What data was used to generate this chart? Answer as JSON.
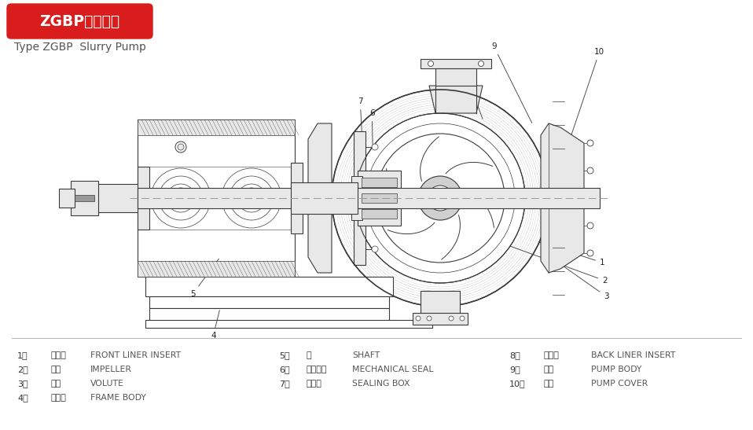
{
  "title_text": "ZGBP型渣浆泵",
  "title_bg_color": "#d91c1c",
  "title_text_color": "#ffffff",
  "subtitle_text": "Type ZGBP  Slurry Pump",
  "subtitle_color": "#555555",
  "bg_color": "#ffffff",
  "divider_color": "#bbbbbb",
  "lc": "#3a3a3a",
  "legend_col1": [
    [
      "1、",
      "前护板",
      "FRONT LINER INSERT"
    ],
    [
      "2、",
      "叶轮",
      "IMPELLER"
    ],
    [
      "3、",
      "护套",
      "VOLUTE"
    ],
    [
      "4、",
      "托架体",
      "FRAME BODY"
    ]
  ],
  "legend_col2": [
    [
      "5、",
      "轴",
      "SHAFT"
    ],
    [
      "6、",
      "机械密封",
      "MECHANICAL SEAL"
    ],
    [
      "7、",
      "密封筱",
      "SEALING BOX"
    ]
  ],
  "legend_col3": [
    [
      "8、",
      "后护板",
      "BACK LINER INSERT"
    ],
    [
      "9、",
      "泵体",
      "PUMP BODY"
    ],
    [
      "10、",
      "泵盖",
      "PUMP COVER"
    ]
  ]
}
